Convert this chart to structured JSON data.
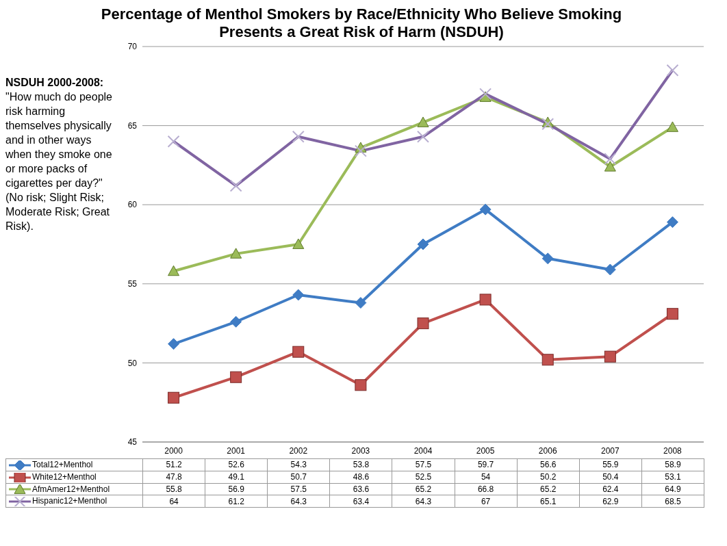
{
  "chart_data": {
    "type": "line",
    "title": "Percentage of Menthol Smokers by Race/Ethnicity Who Believe Smoking Presents a Great Risk of Harm (NSDUH)",
    "annotations": [
      "NSDUH 2000-2008:",
      "\"How much do people risk harming themselves physically and in other ways when they smoke one or more packs of cigarettes per day?\"    (No risk; Slight Risk; Moderate Risk; Great Risk)."
    ],
    "categories": [
      "2000",
      "2001",
      "2002",
      "2003",
      "2004",
      "2005",
      "2006",
      "2007",
      "2008"
    ],
    "series": [
      {
        "name": "Total12+Menthol",
        "color": "#3f7cc4",
        "marker": "diamond",
        "values": [
          51.2,
          52.6,
          54.3,
          53.8,
          57.5,
          59.7,
          56.6,
          55.9,
          58.9
        ]
      },
      {
        "name": "White12+Menthol",
        "color": "#c0504d",
        "marker": "square",
        "values": [
          47.8,
          49.1,
          50.7,
          48.6,
          52.5,
          54,
          50.2,
          50.4,
          53.1
        ]
      },
      {
        "name": "AfmAmer12+Menthol",
        "color": "#9bbb59",
        "marker": "triangle",
        "values": [
          55.8,
          56.9,
          57.5,
          63.6,
          65.2,
          66.8,
          65.2,
          62.4,
          64.9
        ]
      },
      {
        "name": "Hispanic12+Menthol",
        "color": "#8064a2",
        "marker": "cross",
        "values": [
          64,
          61.2,
          64.3,
          63.4,
          64.3,
          67,
          65.1,
          62.9,
          68.5
        ]
      }
    ],
    "ylim": [
      45,
      70
    ],
    "yticks": [
      45,
      50,
      55,
      60,
      65,
      70
    ],
    "grid": "y",
    "legend": "bottom",
    "data_labels": true
  }
}
